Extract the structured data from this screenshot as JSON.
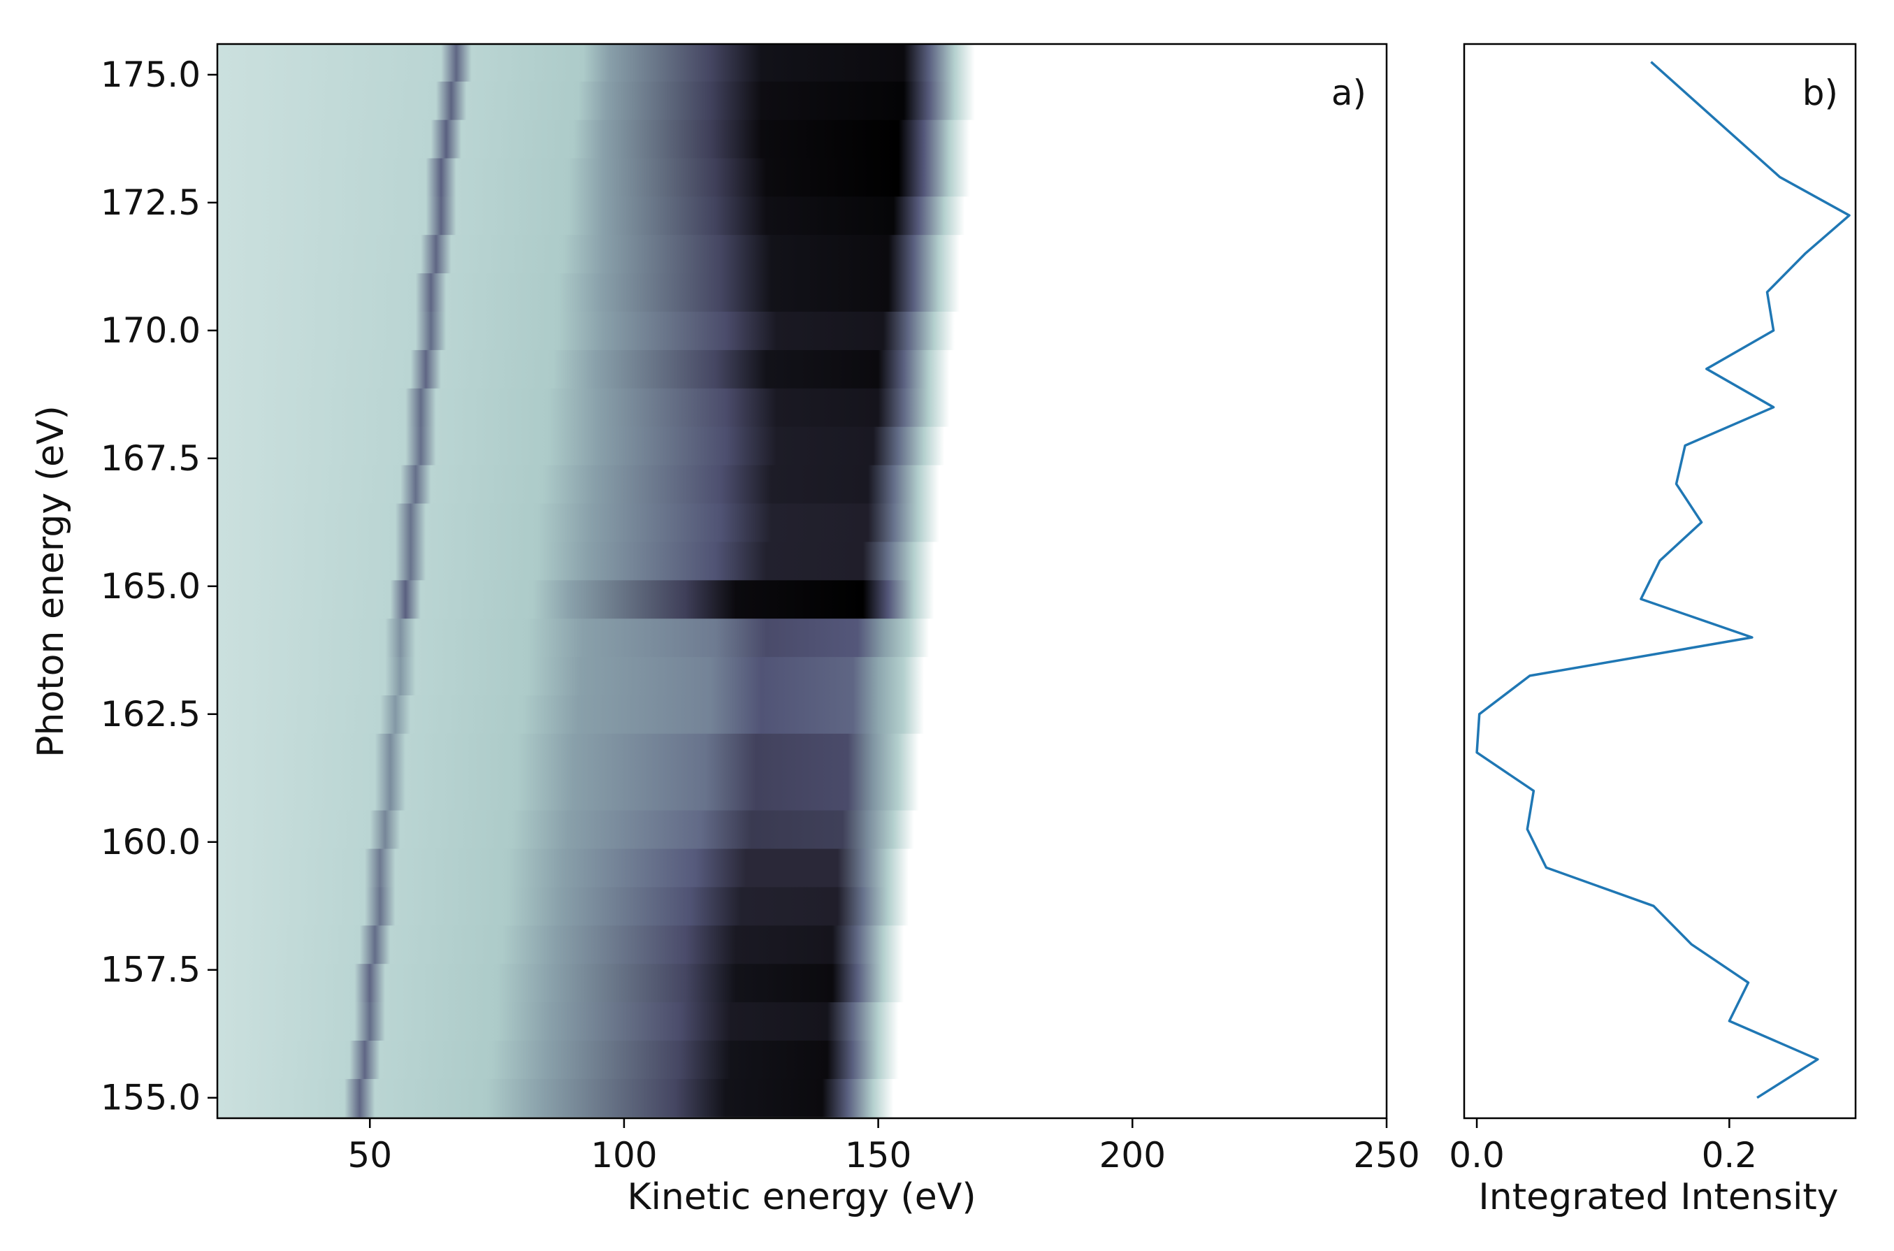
{
  "chart_data": [
    {
      "type": "heatmap",
      "panel_label": "a)",
      "xlabel": "Kinetic energy (eV)",
      "ylabel": "Photon energy (eV)",
      "xlim": [
        20,
        250
      ],
      "ylim": [
        154.6,
        175.6
      ],
      "xticks": [
        50,
        100,
        150,
        200,
        250
      ],
      "xtick_labels": [
        "50",
        "100",
        "150",
        "200",
        "250"
      ],
      "yticks": [
        155.0,
        157.5,
        160.0,
        162.5,
        165.0,
        167.5,
        170.0,
        172.5,
        175.0
      ],
      "ytick_labels": [
        "155.0",
        "157.5",
        "160.0",
        "162.5",
        "165.0",
        "167.5",
        "170.0",
        "172.5",
        "175.0"
      ],
      "colormap": [
        "#d6e8e6",
        "#a8c8c6",
        "#7f93a1",
        "#54577a",
        "#2a2838",
        "#000000"
      ],
      "rows": [
        {
          "photon_energy": 155.0,
          "cutoff": 147,
          "line_pos": 48,
          "dark_start": 120,
          "peak_intensity": 0.95
        },
        {
          "photon_energy": 155.75,
          "cutoff": 148,
          "line_pos": 49,
          "dark_start": 121,
          "peak_intensity": 0.95
        },
        {
          "photon_energy": 156.5,
          "cutoff": 148,
          "line_pos": 50,
          "dark_start": 121,
          "peak_intensity": 0.9
        },
        {
          "photon_energy": 157.25,
          "cutoff": 149,
          "line_pos": 50,
          "dark_start": 122,
          "peak_intensity": 0.95
        },
        {
          "photon_energy": 158.0,
          "cutoff": 149,
          "line_pos": 51,
          "dark_start": 122,
          "peak_intensity": 0.9
        },
        {
          "photon_energy": 158.75,
          "cutoff": 150,
          "line_pos": 52,
          "dark_start": 123,
          "peak_intensity": 0.85
        },
        {
          "photon_energy": 159.5,
          "cutoff": 150,
          "line_pos": 52,
          "dark_start": 124,
          "peak_intensity": 0.8
        },
        {
          "photon_energy": 160.25,
          "cutoff": 151,
          "line_pos": 53,
          "dark_start": 125,
          "peak_intensity": 0.7
        },
        {
          "photon_energy": 161.0,
          "cutoff": 152,
          "line_pos": 54,
          "dark_start": 126,
          "peak_intensity": 0.65
        },
        {
          "photon_energy": 161.75,
          "cutoff": 152,
          "line_pos": 54,
          "dark_start": 126,
          "peak_intensity": 0.65
        },
        {
          "photon_energy": 162.5,
          "cutoff": 153,
          "line_pos": 55,
          "dark_start": 127,
          "peak_intensity": 0.55
        },
        {
          "photon_energy": 163.25,
          "cutoff": 153,
          "line_pos": 56,
          "dark_start": 127,
          "peak_intensity": 0.55
        },
        {
          "photon_energy": 164.0,
          "cutoff": 154,
          "line_pos": 56,
          "dark_start": 128,
          "peak_intensity": 0.6
        },
        {
          "photon_energy": 164.75,
          "cutoff": 155,
          "line_pos": 57,
          "dark_start": 122,
          "peak_intensity": 1.0
        },
        {
          "photon_energy": 165.5,
          "cutoff": 155,
          "line_pos": 58,
          "dark_start": 128,
          "peak_intensity": 0.85
        },
        {
          "photon_energy": 166.25,
          "cutoff": 156,
          "line_pos": 58,
          "dark_start": 129,
          "peak_intensity": 0.85
        },
        {
          "photon_energy": 167.0,
          "cutoff": 156,
          "line_pos": 59,
          "dark_start": 129,
          "peak_intensity": 0.88
        },
        {
          "photon_energy": 167.75,
          "cutoff": 157,
          "line_pos": 60,
          "dark_start": 130,
          "peak_intensity": 0.88
        },
        {
          "photon_energy": 168.5,
          "cutoff": 158,
          "line_pos": 60,
          "dark_start": 130,
          "peak_intensity": 0.9
        },
        {
          "photon_energy": 169.25,
          "cutoff": 158,
          "line_pos": 61,
          "dark_start": 128,
          "peak_intensity": 0.95
        },
        {
          "photon_energy": 170.0,
          "cutoff": 159,
          "line_pos": 62,
          "dark_start": 130,
          "peak_intensity": 0.9
        },
        {
          "photon_energy": 170.75,
          "cutoff": 160,
          "line_pos": 62,
          "dark_start": 129,
          "peak_intensity": 0.95
        },
        {
          "photon_energy": 171.5,
          "cutoff": 160,
          "line_pos": 63,
          "dark_start": 129,
          "peak_intensity": 0.95
        },
        {
          "photon_energy": 172.25,
          "cutoff": 161,
          "line_pos": 64,
          "dark_start": 128,
          "peak_intensity": 0.97
        },
        {
          "photon_energy": 173.0,
          "cutoff": 162,
          "line_pos": 64,
          "dark_start": 128,
          "peak_intensity": 1.0
        },
        {
          "photon_energy": 173.75,
          "cutoff": 162,
          "line_pos": 65,
          "dark_start": 127,
          "peak_intensity": 1.0
        },
        {
          "photon_energy": 174.5,
          "cutoff": 163,
          "line_pos": 66,
          "dark_start": 127,
          "peak_intensity": 0.98
        },
        {
          "photon_energy": 175.25,
          "cutoff": 163,
          "line_pos": 67,
          "dark_start": 127,
          "peak_intensity": 0.95
        }
      ]
    },
    {
      "type": "line",
      "panel_label": "b)",
      "xlabel": "Integrated Intensity",
      "ylabel": "",
      "xlim": [
        -0.01,
        0.3
      ],
      "ylim": [
        154.6,
        175.6
      ],
      "xticks": [
        0.0,
        0.2
      ],
      "xtick_labels": [
        "0.0",
        "0.2"
      ],
      "line_color": "#1f77b4",
      "series": [
        {
          "name": "Integrated Intensity",
          "x": [
            0.222,
            0.27,
            0.2,
            0.215,
            0.17,
            0.14,
            0.055,
            0.04,
            0.045,
            0.0,
            0.002,
            0.042,
            0.218,
            0.13,
            0.145,
            0.178,
            0.158,
            0.165,
            0.235,
            0.182,
            0.235,
            0.23,
            0.26,
            0.295,
            0.24,
            0.138
          ],
          "y": [
            155.0,
            155.75,
            156.5,
            157.25,
            158.0,
            158.75,
            159.5,
            160.25,
            161.0,
            161.75,
            162.5,
            163.25,
            164.0,
            164.75,
            165.5,
            166.25,
            167.0,
            167.75,
            168.5,
            169.25,
            170.0,
            170.75,
            171.5,
            172.25,
            173.0,
            175.25
          ]
        }
      ]
    }
  ]
}
